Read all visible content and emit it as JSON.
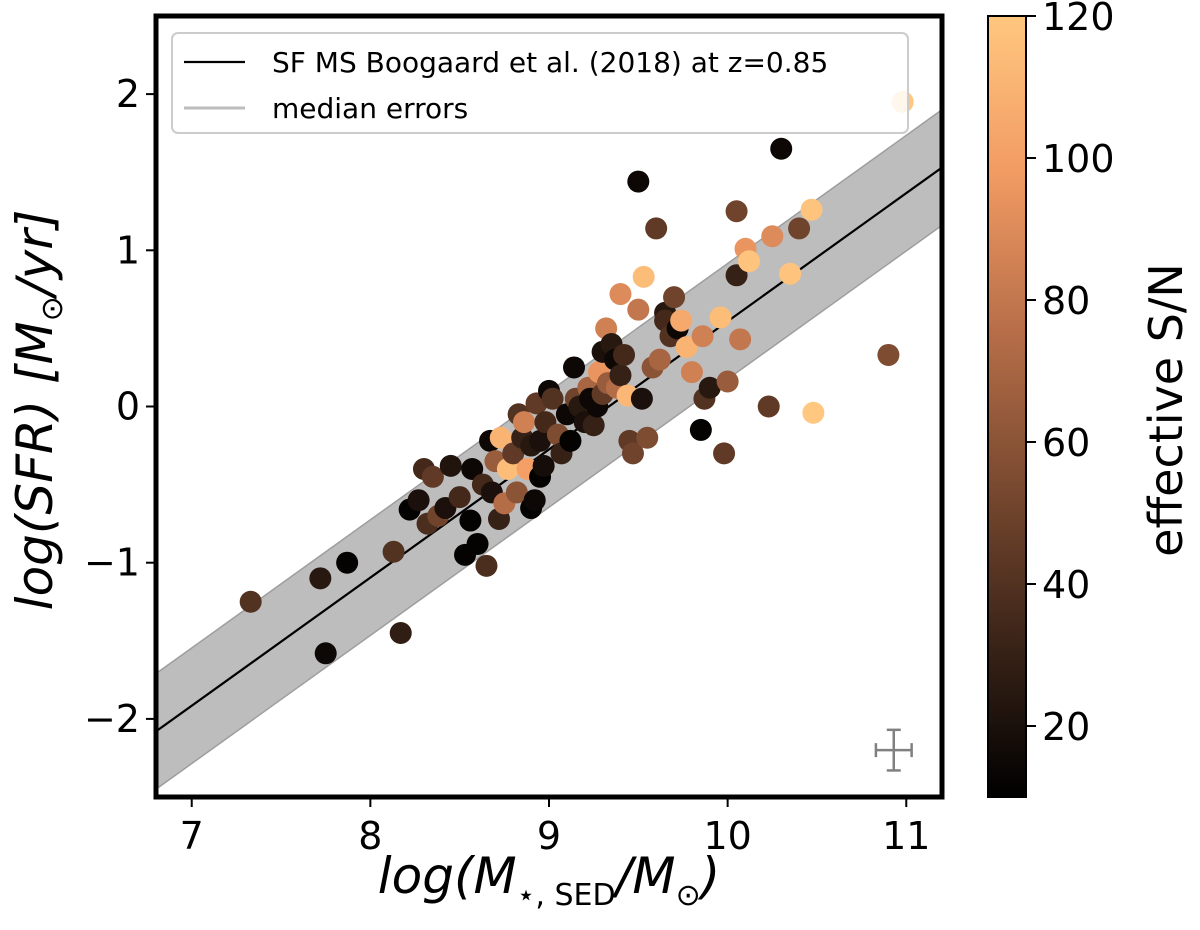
{
  "chart_data": {
    "type": "scatter",
    "xlabel": "log(M⋆, SED/M⊙)",
    "ylabel": "log(SFR) [M⊙/yr]",
    "xlim": [
      6.8,
      11.2
    ],
    "ylim": [
      -2.5,
      2.5
    ],
    "x_ticks": [
      "7",
      "8",
      "9",
      "10",
      "11"
    ],
    "y_ticks": [
      "−2",
      "−1",
      "0",
      "1",
      "2"
    ],
    "grid": false,
    "legend_position": "top-left",
    "main_sequence": {
      "label": "SF MS Boogaard et al. (2018) at z=0.85",
      "x": [
        6.8,
        11.2
      ],
      "y": [
        -2.08,
        1.53
      ],
      "band_halfwidth": 0.37
    },
    "median_errors": {
      "label": "median errors",
      "x": 10.93,
      "y": -2.2,
      "xerr": 0.1,
      "yerr": 0.13
    },
    "colorbar": {
      "label": "effective S/N",
      "range": [
        10,
        120
      ],
      "ticks": [
        "20",
        "40",
        "60",
        "80",
        "100",
        "120"
      ],
      "colormap": [
        "#000000",
        "#3b2418",
        "#7a4a30",
        "#b86f49",
        "#f29b63",
        "#ffc77f"
      ]
    },
    "points": [
      {
        "x": 7.33,
        "y": -1.25,
        "c": 40
      },
      {
        "x": 7.72,
        "y": -1.1,
        "c": 25
      },
      {
        "x": 7.75,
        "y": -1.58,
        "c": 15
      },
      {
        "x": 7.87,
        "y": -1.0,
        "c": 12
      },
      {
        "x": 8.13,
        "y": -0.93,
        "c": 40
      },
      {
        "x": 8.17,
        "y": -1.45,
        "c": 28
      },
      {
        "x": 8.22,
        "y": -0.66,
        "c": 12
      },
      {
        "x": 8.27,
        "y": -0.6,
        "c": 20
      },
      {
        "x": 8.3,
        "y": -0.4,
        "c": 35
      },
      {
        "x": 8.32,
        "y": -0.75,
        "c": 38
      },
      {
        "x": 8.35,
        "y": -0.45,
        "c": 45
      },
      {
        "x": 8.38,
        "y": -0.7,
        "c": 50
      },
      {
        "x": 8.42,
        "y": -0.65,
        "c": 20
      },
      {
        "x": 8.45,
        "y": -0.38,
        "c": 22
      },
      {
        "x": 8.5,
        "y": -0.58,
        "c": 35
      },
      {
        "x": 8.53,
        "y": -0.95,
        "c": 12
      },
      {
        "x": 8.56,
        "y": -0.73,
        "c": 12
      },
      {
        "x": 8.57,
        "y": -0.4,
        "c": 15
      },
      {
        "x": 8.6,
        "y": -0.88,
        "c": 12
      },
      {
        "x": 8.63,
        "y": -0.5,
        "c": 35
      },
      {
        "x": 8.65,
        "y": -1.02,
        "c": 38
      },
      {
        "x": 8.67,
        "y": -0.22,
        "c": 15
      },
      {
        "x": 8.68,
        "y": -0.55,
        "c": 20
      },
      {
        "x": 8.7,
        "y": -0.35,
        "c": 65
      },
      {
        "x": 8.72,
        "y": -0.72,
        "c": 30
      },
      {
        "x": 8.73,
        "y": -0.2,
        "c": 110
      },
      {
        "x": 8.75,
        "y": -0.62,
        "c": 75
      },
      {
        "x": 8.77,
        "y": -0.4,
        "c": 115
      },
      {
        "x": 8.8,
        "y": -0.3,
        "c": 45
      },
      {
        "x": 8.82,
        "y": -0.55,
        "c": 60
      },
      {
        "x": 8.83,
        "y": -0.05,
        "c": 40
      },
      {
        "x": 8.85,
        "y": -0.2,
        "c": 30
      },
      {
        "x": 8.86,
        "y": -0.1,
        "c": 85
      },
      {
        "x": 8.88,
        "y": -0.4,
        "c": 100
      },
      {
        "x": 8.9,
        "y": -0.65,
        "c": 12
      },
      {
        "x": 8.9,
        "y": -0.25,
        "c": 25
      },
      {
        "x": 8.92,
        "y": -0.6,
        "c": 15
      },
      {
        "x": 8.93,
        "y": 0.02,
        "c": 45
      },
      {
        "x": 8.95,
        "y": -0.45,
        "c": 12
      },
      {
        "x": 8.95,
        "y": -0.22,
        "c": 20
      },
      {
        "x": 8.97,
        "y": -0.38,
        "c": 18
      },
      {
        "x": 8.98,
        "y": -0.1,
        "c": 35
      },
      {
        "x": 9.0,
        "y": 0.1,
        "c": 15
      },
      {
        "x": 9.02,
        "y": 0.05,
        "c": 40
      },
      {
        "x": 9.05,
        "y": -0.18,
        "c": 55
      },
      {
        "x": 9.07,
        "y": -0.3,
        "c": 30
      },
      {
        "x": 9.1,
        "y": -0.05,
        "c": 15
      },
      {
        "x": 9.12,
        "y": -0.22,
        "c": 12
      },
      {
        "x": 9.14,
        "y": 0.25,
        "c": 15
      },
      {
        "x": 9.15,
        "y": 0.05,
        "c": 50
      },
      {
        "x": 9.17,
        "y": 0.0,
        "c": 25
      },
      {
        "x": 9.2,
        "y": -0.1,
        "c": 20
      },
      {
        "x": 9.22,
        "y": 0.12,
        "c": 70
      },
      {
        "x": 9.23,
        "y": 0.05,
        "c": 15
      },
      {
        "x": 9.25,
        "y": -0.12,
        "c": 30
      },
      {
        "x": 9.27,
        "y": 0.0,
        "c": 15
      },
      {
        "x": 9.28,
        "y": 0.22,
        "c": 95
      },
      {
        "x": 9.3,
        "y": 0.08,
        "c": 45
      },
      {
        "x": 9.3,
        "y": 0.35,
        "c": 20
      },
      {
        "x": 9.32,
        "y": 0.5,
        "c": 85
      },
      {
        "x": 9.33,
        "y": 0.15,
        "c": 65
      },
      {
        "x": 9.35,
        "y": 0.4,
        "c": 25
      },
      {
        "x": 9.37,
        "y": 0.3,
        "c": 15
      },
      {
        "x": 9.38,
        "y": 0.12,
        "c": 75
      },
      {
        "x": 9.4,
        "y": 0.72,
        "c": 90
      },
      {
        "x": 9.4,
        "y": 0.2,
        "c": 30
      },
      {
        "x": 9.42,
        "y": 0.33,
        "c": 35
      },
      {
        "x": 9.44,
        "y": 0.07,
        "c": 112
      },
      {
        "x": 9.45,
        "y": -0.22,
        "c": 45
      },
      {
        "x": 9.47,
        "y": -0.3,
        "c": 50
      },
      {
        "x": 9.5,
        "y": 1.44,
        "c": 15
      },
      {
        "x": 9.5,
        "y": 0.62,
        "c": 80
      },
      {
        "x": 9.52,
        "y": 0.05,
        "c": 20
      },
      {
        "x": 9.53,
        "y": 0.83,
        "c": 115
      },
      {
        "x": 9.55,
        "y": -0.2,
        "c": 55
      },
      {
        "x": 9.58,
        "y": 0.25,
        "c": 60
      },
      {
        "x": 9.6,
        "y": 1.14,
        "c": 45
      },
      {
        "x": 9.62,
        "y": 0.3,
        "c": 70
      },
      {
        "x": 9.65,
        "y": 0.6,
        "c": 25
      },
      {
        "x": 9.65,
        "y": 0.55,
        "c": 35
      },
      {
        "x": 9.68,
        "y": 0.45,
        "c": 40
      },
      {
        "x": 9.7,
        "y": 0.7,
        "c": 50
      },
      {
        "x": 9.72,
        "y": 0.5,
        "c": 15
      },
      {
        "x": 9.74,
        "y": 0.55,
        "c": 105
      },
      {
        "x": 9.77,
        "y": 0.38,
        "c": 110
      },
      {
        "x": 9.8,
        "y": 0.22,
        "c": 85
      },
      {
        "x": 9.85,
        "y": -0.15,
        "c": 12
      },
      {
        "x": 9.86,
        "y": 0.45,
        "c": 85
      },
      {
        "x": 9.87,
        "y": 0.05,
        "c": 40
      },
      {
        "x": 9.9,
        "y": 0.12,
        "c": 25
      },
      {
        "x": 9.96,
        "y": 0.57,
        "c": 115
      },
      {
        "x": 9.98,
        "y": -0.3,
        "c": 45
      },
      {
        "x": 10.0,
        "y": 0.16,
        "c": 65
      },
      {
        "x": 10.05,
        "y": 1.25,
        "c": 50
      },
      {
        "x": 10.05,
        "y": 0.84,
        "c": 30
      },
      {
        "x": 10.07,
        "y": 0.43,
        "c": 80
      },
      {
        "x": 10.1,
        "y": 1.01,
        "c": 95
      },
      {
        "x": 10.12,
        "y": 0.93,
        "c": 118
      },
      {
        "x": 10.23,
        "y": 0.0,
        "c": 45
      },
      {
        "x": 10.25,
        "y": 1.09,
        "c": 90
      },
      {
        "x": 10.3,
        "y": 1.65,
        "c": 15
      },
      {
        "x": 10.35,
        "y": 0.85,
        "c": 118
      },
      {
        "x": 10.4,
        "y": 1.14,
        "c": 50
      },
      {
        "x": 10.47,
        "y": 1.26,
        "c": 118
      },
      {
        "x": 10.48,
        "y": -0.04,
        "c": 120
      },
      {
        "x": 10.9,
        "y": 0.33,
        "c": 55
      },
      {
        "x": 10.98,
        "y": 1.95,
        "c": 122
      }
    ]
  }
}
